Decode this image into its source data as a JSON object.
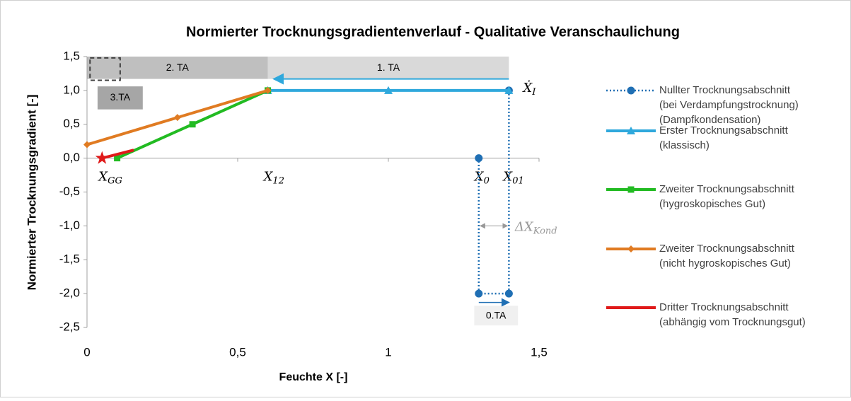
{
  "chart_data": {
    "type": "line",
    "title": "Normierter Trocknungsgradientenverlauf - Qualitative Veranschaulichung",
    "xlabel": "Feuchte X [-]",
    "ylabel": "Normierter Trocknungsgradient [-]",
    "xlim": [
      0,
      1.5
    ],
    "ylim": [
      -2.5,
      1.5
    ],
    "xticks": [
      0,
      {
        "value": 0.5,
        "label": "0,5"
      },
      1,
      {
        "value": 1.5,
        "label": "1,5"
      }
    ],
    "yticks": [
      {
        "value": -2.5,
        "label": "-2,5"
      },
      {
        "value": -2,
        "label": "-2,0"
      },
      {
        "value": -1.5,
        "label": "-1,5"
      },
      {
        "value": -1,
        "label": "-1,0"
      },
      {
        "value": -0.5,
        "label": "-0,5"
      },
      {
        "value": 0,
        "label": "0,0"
      },
      {
        "value": 0.5,
        "label": "0,5"
      },
      {
        "value": 1,
        "label": "1,0"
      },
      {
        "value": 1.5,
        "label": "1,5"
      }
    ],
    "grid": false,
    "legend": "right",
    "series": [
      {
        "name": "Nullter Trocknungsabschnitt\n(bei Verdampfungstrocknung)\n(Dampfkondensation)",
        "color": "#1f6fb4",
        "style": "dotted",
        "marker": "circle",
        "x": [
          1.4,
          1.4,
          1.3,
          1.3
        ],
        "values": [
          1,
          -2,
          -2,
          0
        ]
      },
      {
        "name": "Erster Trocknungsabschnitt\n(klassisch)",
        "color": "#2fa8dc",
        "style": "solid",
        "marker": "triangle",
        "x": [
          0.6,
          1,
          1.4
        ],
        "values": [
          1,
          1,
          1
        ]
      },
      {
        "name": "Zweiter Trocknungsabschnitt\n(hygroskopisches Gut)",
        "color": "#22bb22",
        "style": "solid",
        "marker": "square",
        "x": [
          0.1,
          0.35,
          0.6
        ],
        "values": [
          0,
          0.5,
          1
        ]
      },
      {
        "name": "Zweiter Trocknungsabschnitt\n(nicht hygroskopisches Gut)",
        "color": "#e07b22",
        "style": "solid",
        "marker": "diamond",
        "x": [
          0,
          0.3,
          0.6
        ],
        "values": [
          0.2,
          0.6,
          1
        ]
      },
      {
        "name": "Dritter Trocknungsabschnitt\n(abhängig vom Trocknungsgut)",
        "color": "#e01a1a",
        "style": "solid",
        "marker": "star",
        "x": [
          0.05,
          0.155
        ],
        "values": [
          0,
          0.12
        ]
      }
    ],
    "annotations": {
      "ta1": "1. TA",
      "ta2": "2. TA",
      "ta3": "3.TA",
      "ta0": "0.TA",
      "x_gg": {
        "base": "X",
        "sub": "GG"
      },
      "x_12": {
        "base": "X",
        "sub": "12"
      },
      "x_0": {
        "base": "X",
        "sub": "0"
      },
      "x_01": {
        "base": "X",
        "sub": "01"
      },
      "x_i": {
        "base": "Ẋ",
        "sub": "I"
      },
      "dx_kond": {
        "base": "ΔX",
        "sub": "Kond"
      }
    }
  }
}
